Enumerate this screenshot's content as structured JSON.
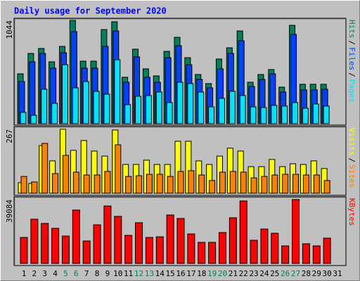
{
  "chart_data": {
    "type": "bar",
    "title": "Daily usage for September 2020",
    "categories": [
      "1",
      "2",
      "3",
      "4",
      "5",
      "6",
      "7",
      "8",
      "9",
      "10",
      "11",
      "12",
      "13",
      "14",
      "15",
      "16",
      "17",
      "18",
      "19",
      "20",
      "21",
      "22",
      "23",
      "24",
      "25",
      "26",
      "27",
      "28",
      "29",
      "30",
      "31"
    ],
    "highlight_categories": [
      "5",
      "6",
      "12",
      "13",
      "19",
      "20",
      "26",
      "27"
    ],
    "highlight_color": "#00805c",
    "legend_separator": "/",
    "panels": [
      {
        "ylim": [
          0,
          1044
        ],
        "yticks": [
          1044
        ],
        "series": [
          {
            "name": "Hits",
            "color": "#00805c",
            "values": [
              504,
              710,
              760,
              625,
              781,
              1044,
              632,
              632,
              951,
              1030,
              469,
              753,
              554,
              483,
              731,
              873,
              667,
              497,
              405,
              653,
              767,
              937,
              419,
              497,
              547,
              369,
              994,
              398,
              398,
              398,
              0
            ]
          },
          {
            "name": "Files",
            "color": "#0040ff",
            "values": [
              426,
              625,
              710,
              561,
              717,
              930,
              561,
              561,
              781,
              937,
              419,
              675,
              469,
              419,
              667,
              788,
              596,
              447,
              362,
              554,
              710,
              838,
              376,
              447,
              504,
              320,
              902,
              341,
              341,
              348,
              0
            ]
          },
          {
            "name": "Pages",
            "color": "#00e0ff",
            "values": [
              114,
              85,
              348,
              206,
              596,
              362,
              426,
              327,
              298,
              646,
              192,
              277,
              284,
              320,
              213,
              419,
              405,
              320,
              170,
              256,
              327,
              284,
              170,
              163,
              185,
              178,
              213,
              156,
              199,
              178,
              0
            ]
          }
        ]
      },
      {
        "ylim": [
          0,
          267
        ],
        "yticks": [
          267
        ],
        "series": [
          {
            "name": "Visits",
            "color": "#ffff00",
            "values": [
              44,
              41,
              199,
              135,
              267,
              179,
              220,
              176,
              155,
              264,
              120,
              120,
              138,
              120,
              120,
              217,
              217,
              135,
              120,
              155,
              188,
              176,
              111,
              111,
              141,
              111,
              123,
              120,
              135,
              103,
              0
            ]
          },
          {
            "name": "Sites",
            "color": "#ff8000",
            "values": [
              70,
              47,
              208,
              82,
              158,
              88,
              76,
              76,
              91,
              202,
              70,
              73,
              79,
              79,
              70,
              91,
              94,
              76,
              53,
              88,
              91,
              88,
              64,
              70,
              76,
              79,
              79,
              76,
              76,
              53,
              0
            ]
          }
        ]
      },
      {
        "ylim": [
          0,
          39084
        ],
        "yticks": [
          39084
        ],
        "series": [
          {
            "name": "KBytes",
            "color": "#ff0000",
            "values": [
              15892,
              27058,
              24482,
              21475,
              16750,
              32642,
              13744,
              23623,
              35144,
              28777,
              17180,
              24911,
              15892,
              16321,
              29636,
              27488,
              18039,
              12885,
              12885,
              18898,
              27917,
              38225,
              14174,
              21046,
              18468,
              10738,
              39084,
              12026,
              10738,
              15462,
              0
            ]
          }
        ]
      }
    ]
  }
}
